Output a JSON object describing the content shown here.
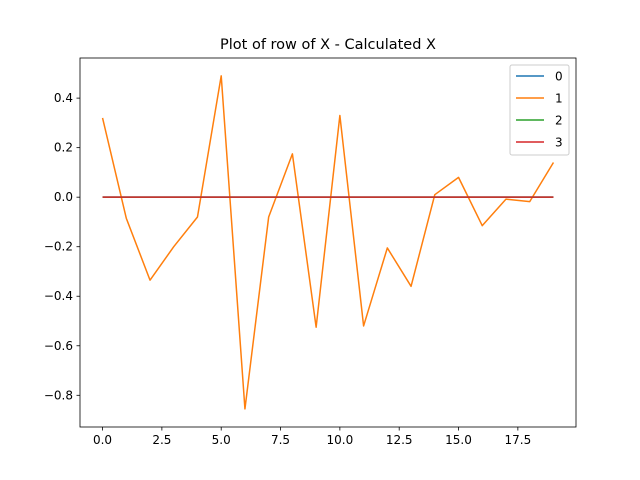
{
  "chart_data": {
    "type": "line",
    "title": "Plot of row of X - Calculated X",
    "xlabel": "",
    "ylabel": "",
    "xlim": [
      -0.95,
      19.95
    ],
    "ylim": [
      -0.928,
      0.562
    ],
    "xticks": [
      0.0,
      2.5,
      5.0,
      7.5,
      10.0,
      12.5,
      15.0,
      17.5
    ],
    "xtick_labels": [
      "0.0",
      "2.5",
      "5.0",
      "7.5",
      "10.0",
      "12.5",
      "15.0",
      "17.5"
    ],
    "yticks": [
      0.4,
      0.2,
      0.0,
      -0.2,
      -0.4,
      -0.6,
      -0.8
    ],
    "ytick_labels": [
      "0.4",
      "0.2",
      "0.0",
      "−0.2",
      "−0.4",
      "−0.6",
      "−0.8"
    ],
    "grid": false,
    "legend_position": "top-right",
    "x": [
      0,
      1,
      2,
      3,
      4,
      5,
      6,
      7,
      8,
      9,
      10,
      11,
      12,
      13,
      14,
      15,
      16,
      17,
      18,
      19
    ],
    "series": [
      {
        "name": "0",
        "color": "#1f77b4",
        "values": [
          0,
          0,
          0,
          0,
          0,
          0,
          0,
          0,
          0,
          0,
          0,
          0,
          0,
          0,
          0,
          0,
          0,
          0,
          0,
          0
        ]
      },
      {
        "name": "1",
        "color": "#ff7f0e",
        "values": [
          0.32,
          -0.085,
          -0.335,
          -0.2,
          -0.08,
          0.49,
          -0.855,
          -0.08,
          0.175,
          -0.525,
          0.33,
          -0.52,
          -0.205,
          -0.36,
          0.01,
          0.08,
          -0.115,
          -0.008,
          -0.018,
          0.14
        ]
      },
      {
        "name": "2",
        "color": "#2ca02c",
        "values": [
          0,
          0,
          0,
          0,
          0,
          0,
          0,
          0,
          0,
          0,
          0,
          0,
          0,
          0,
          0,
          0,
          0,
          0,
          0,
          0
        ]
      },
      {
        "name": "3",
        "color": "#d62728",
        "values": [
          0,
          0,
          0,
          0,
          0,
          0,
          0,
          0,
          0,
          0,
          0,
          0,
          0,
          0,
          0,
          0,
          0,
          0,
          0,
          0
        ]
      }
    ]
  }
}
